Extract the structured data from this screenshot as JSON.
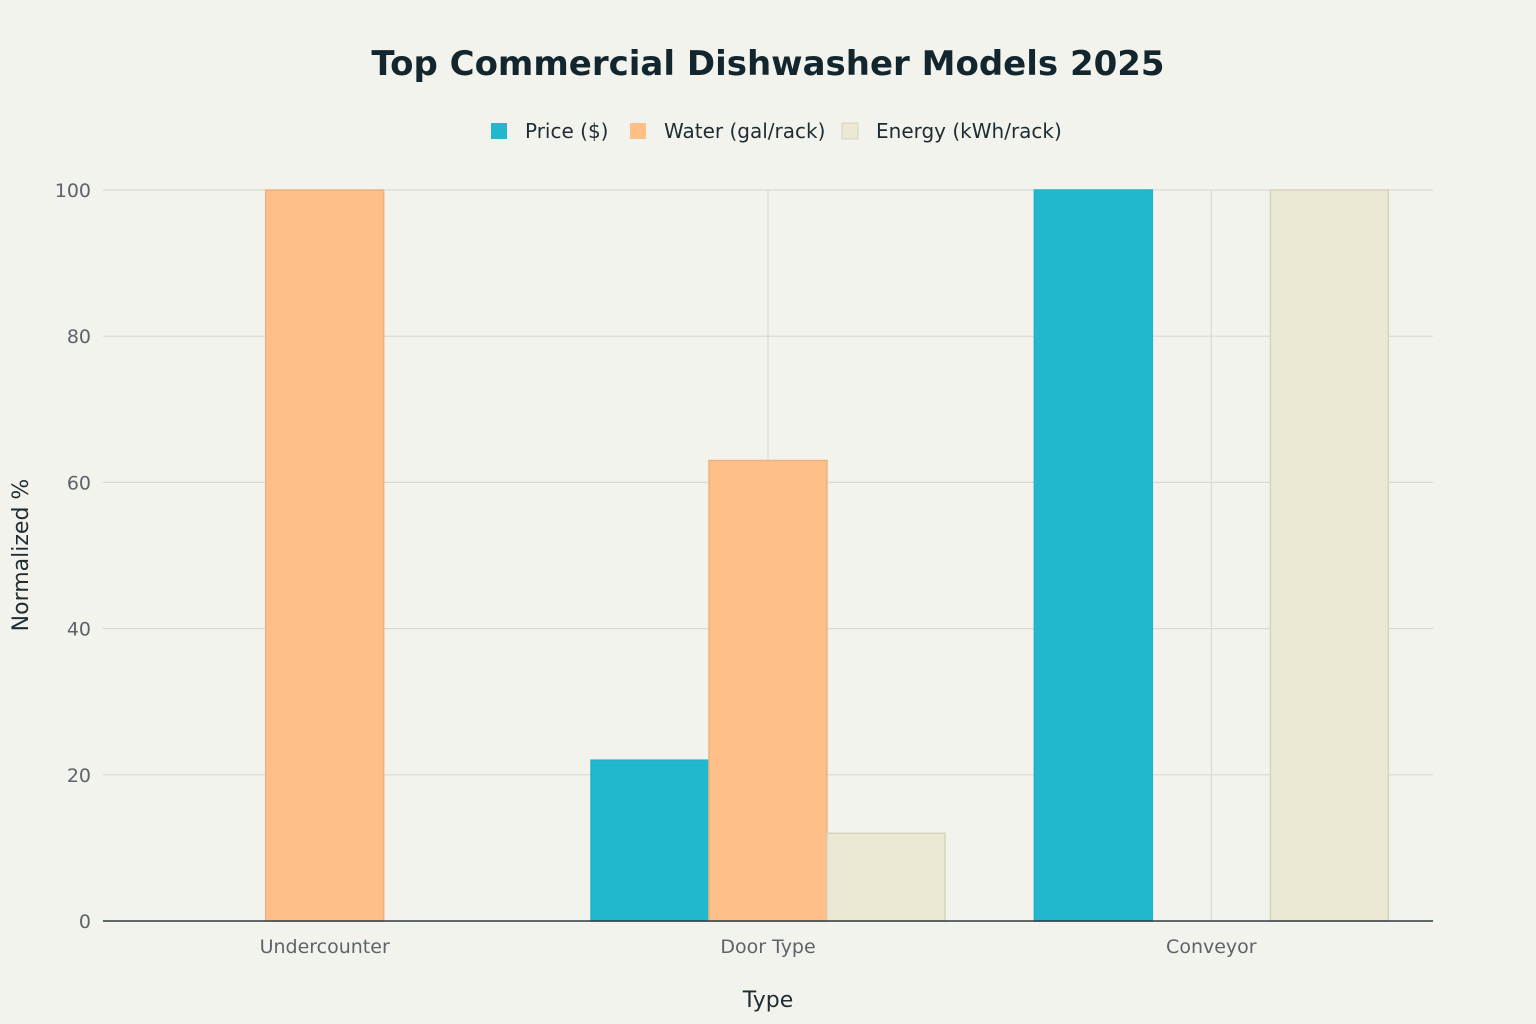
{
  "chart_data": {
    "type": "bar",
    "title": "Top Commercial Dishwasher Models 2025",
    "xlabel": "Type",
    "ylabel": "Normalized %",
    "categories": [
      "Undercounter",
      "Door Type",
      "Conveyor"
    ],
    "series": [
      {
        "name": "Price ($)",
        "values": [
          0,
          22,
          100
        ],
        "color": "#21b8cd"
      },
      {
        "name": "Water (gal/rack)",
        "values": [
          100,
          63,
          0
        ],
        "color": "#ffbf87"
      },
      {
        "name": "Energy (kWh/rack)",
        "values": [
          0,
          12,
          100
        ],
        "color": "#ebe8d4"
      }
    ],
    "ylim": [
      0,
      100
    ],
    "yticks": [
      "0",
      "20",
      "40",
      "60",
      "80",
      "100"
    ],
    "grid": true,
    "legend_position": "top-center"
  }
}
